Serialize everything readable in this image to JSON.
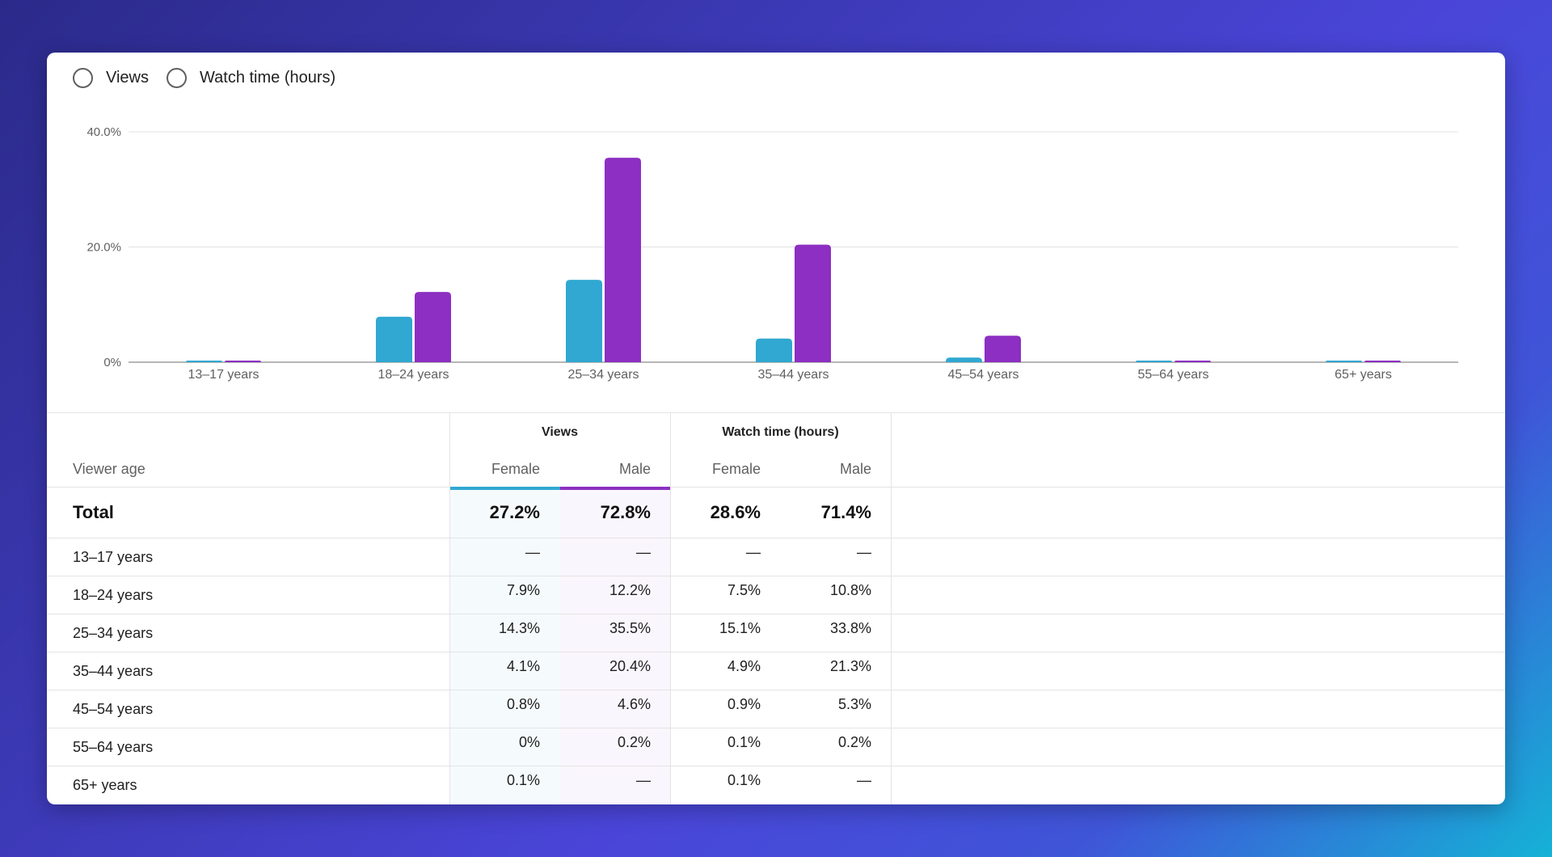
{
  "toggle": {
    "options": [
      "Views",
      "Watch time (hours)"
    ]
  },
  "colors": {
    "female": "#30a8d1",
    "male": "#8c2fc2"
  },
  "chart_data": {
    "type": "bar",
    "categories": [
      "13–17 years",
      "18–24 years",
      "25–34 years",
      "35–44 years",
      "45–54 years",
      "55–64 years",
      "65+ years"
    ],
    "series": [
      {
        "name": "Female",
        "values": [
          0,
          7.9,
          14.3,
          4.1,
          0.8,
          0,
          0.1
        ]
      },
      {
        "name": "Male",
        "values": [
          0,
          12.2,
          35.5,
          20.4,
          4.6,
          0.2,
          0
        ]
      }
    ],
    "yticks": [
      "0%",
      "20.0%",
      "40.0%"
    ],
    "ylim": [
      0,
      40
    ],
    "grid": true
  },
  "table": {
    "group_headers": [
      "Views",
      "Watch time (hours)"
    ],
    "row_header": "Viewer age",
    "sub_headers": [
      "Female",
      "Male",
      "Female",
      "Male"
    ],
    "total": {
      "label": "Total",
      "values": [
        "27.2%",
        "72.8%",
        "28.6%",
        "71.4%"
      ]
    },
    "rows": [
      {
        "label": "13–17 years",
        "values": [
          "—",
          "—",
          "—",
          "—"
        ]
      },
      {
        "label": "18–24 years",
        "values": [
          "7.9%",
          "12.2%",
          "7.5%",
          "10.8%"
        ]
      },
      {
        "label": "25–34 years",
        "values": [
          "14.3%",
          "35.5%",
          "15.1%",
          "33.8%"
        ]
      },
      {
        "label": "35–44 years",
        "values": [
          "4.1%",
          "20.4%",
          "4.9%",
          "21.3%"
        ]
      },
      {
        "label": "45–54 years",
        "values": [
          "0.8%",
          "4.6%",
          "0.9%",
          "5.3%"
        ]
      },
      {
        "label": "55–64 years",
        "values": [
          "0%",
          "0.2%",
          "0.1%",
          "0.2%"
        ]
      },
      {
        "label": "65+ years",
        "values": [
          "0.1%",
          "—",
          "0.1%",
          "—"
        ]
      }
    ]
  }
}
